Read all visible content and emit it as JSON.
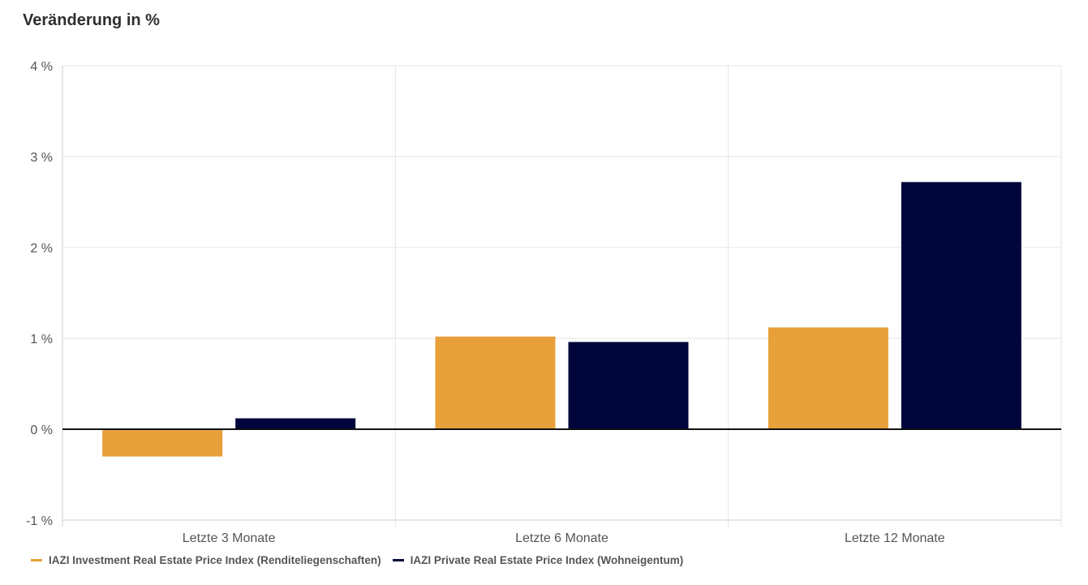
{
  "chart_data": {
    "type": "bar",
    "title": "Veränderung in %",
    "categories": [
      "Letzte 3 Monate",
      "Letzte 6 Monate",
      "Letzte 12 Monate"
    ],
    "series": [
      {
        "name": "IAZI Investment Real Estate Price Index (Renditeliegenschaften)",
        "color": "#E8A03A",
        "values": [
          -0.3,
          1.02,
          1.12
        ]
      },
      {
        "name": "IAZI Private Real Estate Price Index (Wohneigentum)",
        "color": "#00063B",
        "values": [
          0.12,
          0.96,
          2.72
        ]
      }
    ],
    "ylim": [
      -1,
      4
    ],
    "yticks": [
      4,
      3,
      2,
      1,
      0,
      -1
    ],
    "ytick_labels": [
      "4 %",
      "3 %",
      "2 %",
      "1 %",
      "0 %",
      "-1 %"
    ],
    "grid": true,
    "legend_position": "bottom-left"
  }
}
